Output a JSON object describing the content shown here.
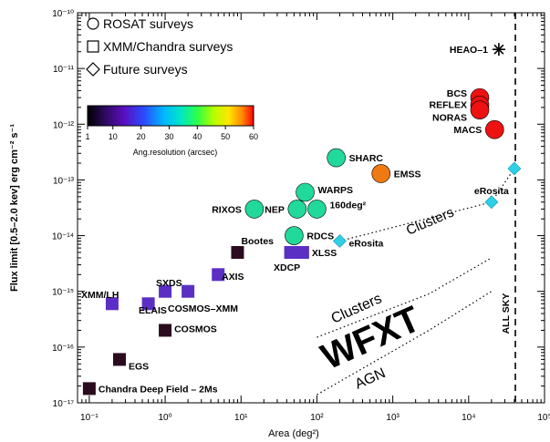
{
  "chart_data": {
    "type": "scatter",
    "xlabel": "Area (deg²)",
    "ylabel": "Flux limit [0.5–2.0 kev] erg cm⁻² s⁻¹",
    "x_scale": "log",
    "y_scale": "log",
    "xlim": [
      0.07,
      100000
    ],
    "ylim": [
      1e-17,
      1e-10
    ],
    "x_ticks": [
      {
        "value": 0.1,
        "label": "10⁻¹"
      },
      {
        "value": 1,
        "label": "10⁰"
      },
      {
        "value": 10,
        "label": "10¹"
      },
      {
        "value": 100,
        "label": "10²"
      },
      {
        "value": 1000,
        "label": "10³"
      },
      {
        "value": 10000,
        "label": "10⁴"
      },
      {
        "value": 100000,
        "label": "10⁵"
      }
    ],
    "y_ticks": [
      {
        "value": 1e-17,
        "label": "10⁻¹⁷"
      },
      {
        "value": 1e-16,
        "label": "10⁻¹⁶"
      },
      {
        "value": 1e-15,
        "label": "10⁻¹⁵"
      },
      {
        "value": 1e-14,
        "label": "10⁻¹⁴"
      },
      {
        "value": 1e-13,
        "label": "10⁻¹³"
      },
      {
        "value": 1e-12,
        "label": "10⁻¹²"
      },
      {
        "value": 1e-11,
        "label": "10⁻¹¹"
      },
      {
        "value": 1e-10,
        "label": "10⁻¹⁰"
      }
    ],
    "legend": {
      "placement": "top-left",
      "entries": [
        {
          "symbol": "circle",
          "label": "ROSAT surveys"
        },
        {
          "symbol": "square",
          "label": "XMM/Chandra surveys"
        },
        {
          "symbol": "diamond",
          "label": "Future surveys"
        }
      ]
    },
    "colorbar": {
      "label": "Ang.resolution (arcsec)",
      "ticks": [
        {
          "value": 1,
          "label": "1"
        },
        {
          "value": 10,
          "label": "10"
        },
        {
          "value": 20,
          "label": "20"
        },
        {
          "value": 30,
          "label": "30"
        },
        {
          "value": 40,
          "label": "40"
        },
        {
          "value": 50,
          "label": "50"
        },
        {
          "value": 60,
          "label": "60"
        }
      ],
      "range": [
        1,
        60
      ]
    },
    "points": [
      {
        "name": "Chandra Deep Field – 2Ms",
        "shape": "square",
        "x": 0.1,
        "y": 1.8e-17,
        "res": 1,
        "label_side": "right"
      },
      {
        "name": "EGS",
        "shape": "square",
        "x": 0.25,
        "y": 6e-17,
        "res": 1,
        "label_side": "right"
      },
      {
        "name": "COSMOS",
        "shape": "square",
        "x": 1.0,
        "y": 2e-16,
        "res": 1,
        "label_side": "right"
      },
      {
        "name": "",
        "shape": "square",
        "x": 0.2,
        "y": 6e-16,
        "res": 8
      },
      {
        "name": "",
        "shape": "square",
        "x": 0.6,
        "y": 6e-16,
        "res": 8
      },
      {
        "name": "",
        "shape": "square",
        "x": 1.0,
        "y": 1e-15,
        "res": 8
      },
      {
        "name": "",
        "shape": "square",
        "x": 2.0,
        "y": 1e-15,
        "res": 8
      },
      {
        "name": "",
        "shape": "square",
        "x": 5.0,
        "y": 2e-15,
        "res": 8
      },
      {
        "name": "Bootes",
        "shape": "square",
        "x": 9.0,
        "y": 5e-15,
        "res": 1,
        "label_side": "right"
      },
      {
        "name": "XDCP",
        "shape": "square",
        "x": 45,
        "y": 5e-15,
        "res": 8
      },
      {
        "name": "XLSS",
        "shape": "square",
        "x": 65,
        "y": 5e-15,
        "res": 8,
        "label_side": "right"
      },
      {
        "name": "RIXOS",
        "shape": "circle",
        "x": 15,
        "y": 3e-14,
        "res": 30,
        "label_side": "left"
      },
      {
        "name": "RDCS",
        "shape": "circle",
        "x": 50,
        "y": 1e-14,
        "res": 30,
        "label_side": "right"
      },
      {
        "name": "NEP",
        "shape": "circle",
        "x": 55,
        "y": 3e-14,
        "res": 30,
        "label_side": "left"
      },
      {
        "name": "WARPS",
        "shape": "circle",
        "x": 70,
        "y": 6e-14,
        "res": 30,
        "label_side": "right"
      },
      {
        "name": "160deg²",
        "shape": "circle",
        "x": 100,
        "y": 3e-14,
        "res": 30,
        "label_side": "right"
      },
      {
        "name": "SHARC",
        "shape": "circle",
        "x": 180,
        "y": 2.5e-13,
        "res": 30,
        "label_side": "right"
      },
      {
        "name": "EMSS",
        "shape": "circle",
        "x": 700,
        "y": 1.3e-13,
        "res": 50,
        "label_side": "right"
      },
      {
        "name": "BCS",
        "shape": "circle",
        "x": 14000,
        "y": 3e-12,
        "res": 60,
        "label_side": "left"
      },
      {
        "name": "REFLEX",
        "shape": "circle",
        "x": 14000,
        "y": 2.2e-12,
        "res": 60,
        "label_side": "left"
      },
      {
        "name": "NORAS",
        "shape": "circle",
        "x": 14000,
        "y": 1.8e-12,
        "res": 60,
        "label_side": "left"
      },
      {
        "name": "MACS",
        "shape": "circle",
        "x": 22000,
        "y": 8e-13,
        "res": 60,
        "label_side": "left"
      },
      {
        "name": "HEAO–1",
        "shape": "star",
        "x": 25000,
        "y": 2.2e-11,
        "label_side": "left"
      },
      {
        "name": "eRosita",
        "shape": "diamond",
        "x": 200,
        "y": 8e-15,
        "res": 25,
        "label_side": "right"
      },
      {
        "name": "eRosita",
        "shape": "diamond",
        "x": 20000,
        "y": 4e-14,
        "res": 25,
        "label_side": "above"
      },
      {
        "name": "",
        "shape": "diamond",
        "x": 40000,
        "y": 1.6e-13,
        "res": 25
      }
    ],
    "wfxt": {
      "clusters": {
        "x": [
          100,
          3000,
          20000
        ],
        "y": [
          1.5e-16,
          9e-16,
          4e-15
        ]
      },
      "agn": {
        "x": [
          100,
          3000,
          20000
        ],
        "y": [
          1.4e-17,
          2e-16,
          1e-15
        ]
      }
    },
    "text_labels": {
      "xmm_lh": "XMM/LH",
      "elais": "ELAIS",
      "sxds": "SXDS",
      "cosmos_xmm": "COSMOS–XMM",
      "axis": "AXIS",
      "clusters_erosita": "Clusters",
      "clusters_wfxt": "Clusters",
      "wfxt": "WFXT",
      "agn": "AGN",
      "all_sky": "ALL SKY"
    },
    "all_sky_x": 41253
  }
}
